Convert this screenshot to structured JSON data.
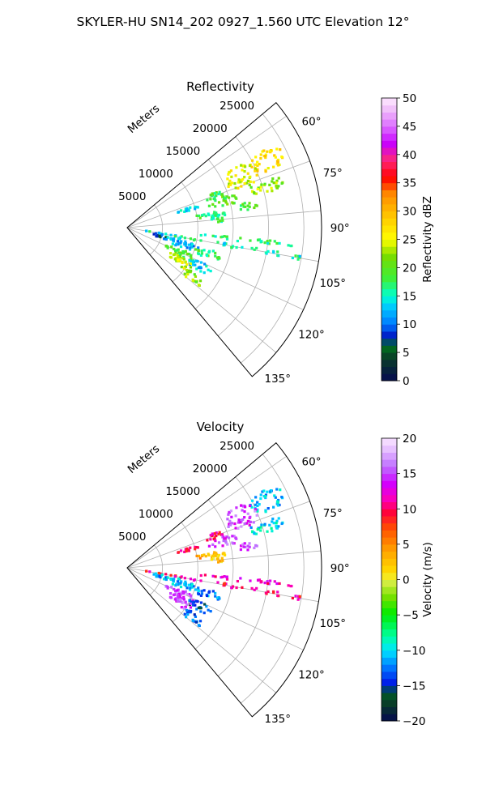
{
  "figure_title": "SKYLER-HU  SN14_202  0927_1.560 UTC Elevation 12°",
  "chart_data": [
    {
      "type": "heatmap",
      "projection": "polar sector",
      "title": "Reflectivity",
      "radial_label": "Meters",
      "radial_ticks": [
        5000,
        10000,
        15000,
        20000,
        25000
      ],
      "radial_tick_labels": [
        "5000",
        "10000",
        "15000",
        "20000",
        "25000"
      ],
      "r_lim": [
        0,
        27500
      ],
      "azimuth_lim_deg": [
        50,
        140
      ],
      "azimuth_ticks_deg": [
        60,
        75,
        90,
        105,
        120,
        135
      ],
      "azimuth_tick_labels": [
        "60°",
        "75°",
        "90°",
        "105°",
        "120°",
        "135°"
      ],
      "grid": true,
      "colorbar": {
        "label": "Reflectivity dBZ",
        "range": [
          0,
          50
        ],
        "ticks": [
          0,
          5,
          10,
          15,
          20,
          25,
          30,
          35,
          40,
          45,
          50
        ],
        "tick_labels": [
          "0",
          "5",
          "10",
          "15",
          "20",
          "25",
          "30",
          "35",
          "40",
          "45",
          "50"
        ],
        "colormap": "pyart_NWSRef-like"
      },
      "echo_regions": [
        {
          "az": 64,
          "r": 22000,
          "daz": 4,
          "dr": 2500,
          "value": 27
        },
        {
          "az": 66,
          "r": 17500,
          "daz": 5,
          "dr": 2500,
          "value": 25
        },
        {
          "az": 70,
          "r": 13000,
          "daz": 2,
          "dr": 1500,
          "value": 18
        },
        {
          "az": 73,
          "r": 20500,
          "daz": 3,
          "dr": 2500,
          "value": 22
        },
        {
          "az": 74,
          "r": 9000,
          "daz": 2,
          "dr": 1500,
          "value": 14
        },
        {
          "az": 75,
          "r": 14000,
          "daz": 3,
          "dr": 2000,
          "value": 20
        },
        {
          "az": 80,
          "r": 17500,
          "daz": 2,
          "dr": 1500,
          "value": 19
        },
        {
          "az": 81,
          "r": 11500,
          "daz": 2,
          "dr": 1500,
          "value": 18
        },
        {
          "az": 84,
          "r": 13000,
          "daz": 3,
          "dr": 1500,
          "value": 17
        },
        {
          "az": 100,
          "r": 14500,
          "daz": 1,
          "dr": 12000,
          "value": 15
        },
        {
          "az": 96,
          "r": 16000,
          "daz": 1,
          "dr": 8000,
          "value": 17
        },
        {
          "az": 104,
          "r": 5000,
          "daz": 3,
          "dr": 1500,
          "value": 8
        },
        {
          "az": 106,
          "r": 8000,
          "daz": 4,
          "dr": 2500,
          "value": 12
        },
        {
          "az": 108,
          "r": 12000,
          "daz": 3,
          "dr": 2000,
          "value": 18
        },
        {
          "az": 115,
          "r": 8500,
          "daz": 3,
          "dr": 2500,
          "value": 19
        },
        {
          "az": 118,
          "r": 11500,
          "daz": 3,
          "dr": 2000,
          "value": 13
        },
        {
          "az": 122,
          "r": 9000,
          "daz": 4,
          "dr": 2000,
          "value": 24
        },
        {
          "az": 127,
          "r": 11500,
          "daz": 3,
          "dr": 2000,
          "value": 22
        }
      ]
    },
    {
      "type": "heatmap",
      "projection": "polar sector",
      "title": "Velocity",
      "radial_label": "Meters",
      "radial_ticks": [
        5000,
        10000,
        15000,
        20000,
        25000
      ],
      "radial_tick_labels": [
        "5000",
        "10000",
        "15000",
        "20000",
        "25000"
      ],
      "r_lim": [
        0,
        27500
      ],
      "azimuth_lim_deg": [
        50,
        140
      ],
      "azimuth_ticks_deg": [
        60,
        75,
        90,
        105,
        120,
        135
      ],
      "azimuth_tick_labels": [
        "60°",
        "75°",
        "90°",
        "105°",
        "120°",
        "135°"
      ],
      "grid": true,
      "colorbar": {
        "label": "Velocity (m/s)",
        "range": [
          -20,
          20
        ],
        "ticks": [
          -20,
          -15,
          -10,
          -5,
          0,
          5,
          10,
          15,
          20
        ],
        "tick_labels": [
          "−20",
          "−15",
          "−10",
          "−5",
          "0",
          "5",
          "10",
          "15",
          "20"
        ],
        "colormap": "pyart_BuDRd18-like"
      },
      "echo_regions": [
        {
          "az": 64,
          "r": 22000,
          "daz": 4,
          "dr": 2500,
          "value": -11
        },
        {
          "az": 66,
          "r": 17500,
          "daz": 5,
          "dr": 2500,
          "value": 15
        },
        {
          "az": 70,
          "r": 13000,
          "daz": 2,
          "dr": 1500,
          "value": 10
        },
        {
          "az": 73,
          "r": 20500,
          "daz": 3,
          "dr": 2500,
          "value": -10
        },
        {
          "az": 74,
          "r": 9000,
          "daz": 2,
          "dr": 1500,
          "value": 10
        },
        {
          "az": 75,
          "r": 14000,
          "daz": 3,
          "dr": 2000,
          "value": 15
        },
        {
          "az": 80,
          "r": 17500,
          "daz": 2,
          "dr": 1500,
          "value": 15
        },
        {
          "az": 81,
          "r": 11500,
          "daz": 2,
          "dr": 1500,
          "value": 4
        },
        {
          "az": 84,
          "r": 13000,
          "daz": 3,
          "dr": 1500,
          "value": 2
        },
        {
          "az": 100,
          "r": 14500,
          "daz": 1,
          "dr": 12000,
          "value": 10
        },
        {
          "az": 96,
          "r": 16000,
          "daz": 1,
          "dr": 8000,
          "value": 12
        },
        {
          "az": 104,
          "r": 5000,
          "daz": 3,
          "dr": 1500,
          "value": -11
        },
        {
          "az": 106,
          "r": 8000,
          "daz": 4,
          "dr": 2500,
          "value": -11
        },
        {
          "az": 108,
          "r": 12000,
          "daz": 3,
          "dr": 2000,
          "value": -12
        },
        {
          "az": 115,
          "r": 8500,
          "daz": 3,
          "dr": 2500,
          "value": 15
        },
        {
          "az": 118,
          "r": 11500,
          "daz": 3,
          "dr": 2000,
          "value": -14
        },
        {
          "az": 122,
          "r": 9000,
          "daz": 4,
          "dr": 2000,
          "value": 15
        },
        {
          "az": 127,
          "r": 11500,
          "daz": 3,
          "dr": 2000,
          "value": -13
        }
      ]
    }
  ]
}
